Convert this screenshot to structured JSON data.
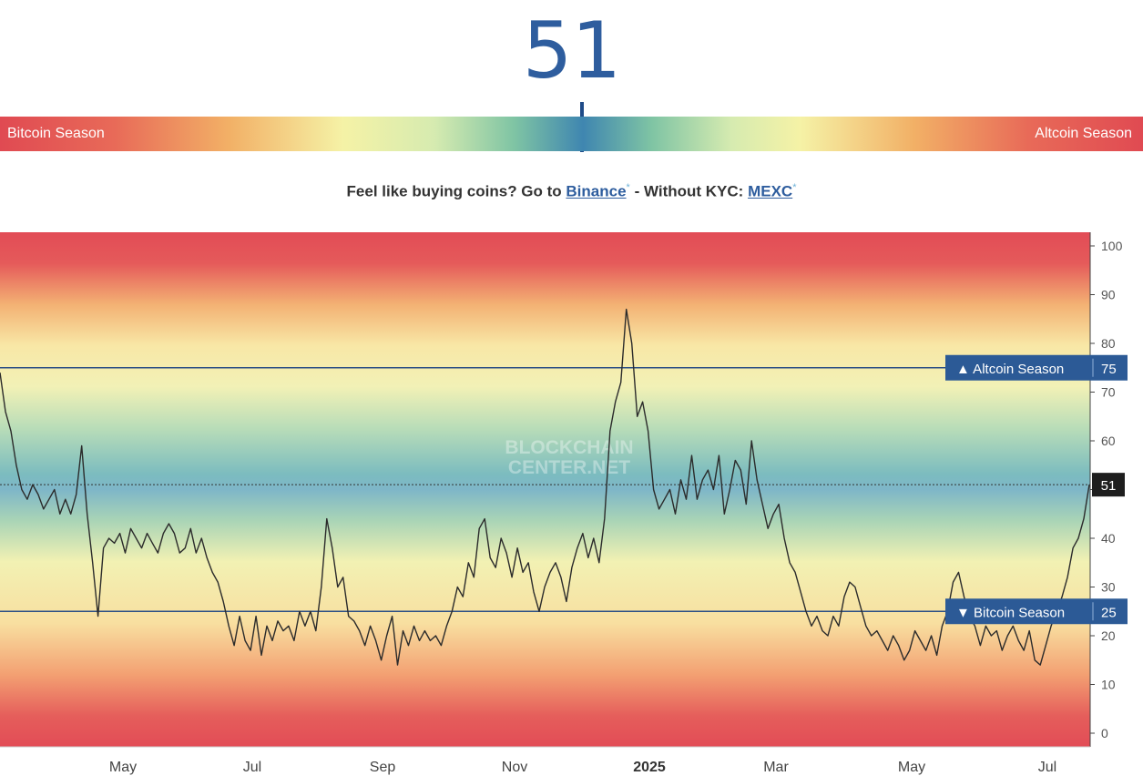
{
  "header": {
    "current_value": "51"
  },
  "season_bar": {
    "left_label": "Bitcoin Season",
    "right_label": "Altcoin Season",
    "marker_value": 51
  },
  "promo": {
    "prefix": "Feel like buying coins? Go to",
    "link1": "Binance",
    "link1_mark": "*",
    "middle": " - Without KYC:",
    "link2": "MEXC",
    "link2_mark": "*"
  },
  "chart_data": {
    "type": "line",
    "ylim": [
      0,
      100
    ],
    "y_ticks": [
      0,
      10,
      20,
      30,
      40,
      50,
      60,
      70,
      80,
      90,
      100
    ],
    "x_ticks": [
      "May",
      "Jul",
      "Sep",
      "Nov",
      "2025",
      "Mar",
      "May",
      "Jul"
    ],
    "watermark": "BLOCKCHAIN CENTER.NET",
    "thresholds": [
      {
        "label": "▲ Altcoin Season",
        "value": 75
      },
      {
        "label": "▼ Bitcoin Season",
        "value": 25
      }
    ],
    "current": {
      "label": "51",
      "value": 51
    },
    "series": [
      {
        "values": [
          74,
          66,
          62,
          55,
          50,
          48,
          51,
          49,
          46,
          48,
          50,
          45,
          48,
          45,
          49,
          59,
          45,
          35,
          24,
          38,
          40,
          39,
          41,
          37,
          42,
          40,
          38,
          41,
          39,
          37,
          41,
          43,
          41,
          37,
          38,
          42,
          37,
          40,
          36,
          33,
          31,
          27,
          22,
          18,
          24,
          19,
          17,
          24,
          16,
          22,
          19,
          23,
          21,
          22,
          19,
          25,
          22,
          25,
          21,
          30,
          44,
          38,
          30,
          32,
          24,
          23,
          21,
          18,
          22,
          19,
          15,
          20,
          24,
          14,
          21,
          18,
          22,
          19,
          21,
          19,
          20,
          18,
          22,
          25,
          30,
          28,
          35,
          32,
          42,
          44,
          36,
          34,
          40,
          37,
          32,
          38,
          33,
          35,
          29,
          25,
          30,
          33,
          35,
          32,
          27,
          34,
          38,
          41,
          36,
          40,
          35,
          44,
          62,
          68,
          72,
          87,
          80,
          65,
          68,
          62,
          50,
          46,
          48,
          50,
          45,
          52,
          48,
          57,
          48,
          52,
          54,
          50,
          57,
          45,
          50,
          56,
          54,
          47,
          60,
          52,
          47,
          42,
          45,
          47,
          40,
          35,
          33,
          29,
          25,
          22,
          24,
          21,
          20,
          24,
          22,
          28,
          31,
          30,
          26,
          22,
          20,
          21,
          19,
          17,
          20,
          18,
          15,
          17,
          21,
          19,
          17,
          20,
          16,
          22,
          25,
          31,
          33,
          28,
          24,
          22,
          18,
          22,
          20,
          21,
          17,
          20,
          22,
          19,
          17,
          21,
          15,
          14,
          18,
          22,
          25,
          28,
          32,
          38,
          40,
          44,
          51
        ]
      }
    ]
  }
}
